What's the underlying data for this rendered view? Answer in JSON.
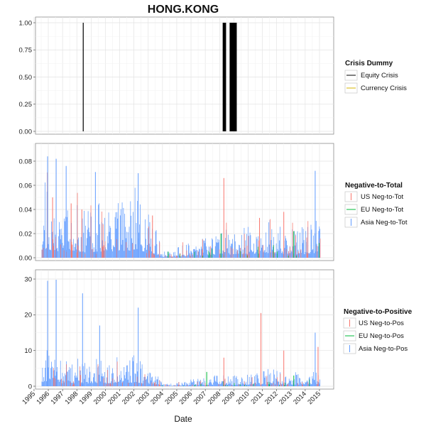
{
  "chart_data": {
    "type": "bar",
    "title": "HONG.KONG",
    "xlabel": "Date",
    "x_ticks": [
      "1995",
      "1996",
      "1997",
      "1998",
      "1999",
      "2000",
      "2001",
      "2002",
      "2003",
      "2004",
      "2005",
      "2006",
      "2007",
      "2008",
      "2009",
      "2010",
      "2011",
      "2012",
      "2013",
      "2014",
      "2015"
    ],
    "grid": true,
    "legend_placement": "right",
    "colors": {
      "us": "#F8766D",
      "eu": "#00BA38",
      "asia": "#619CFF",
      "equity": "#000000",
      "currency": "#D4B400"
    },
    "panels": [
      {
        "name": "crisis",
        "legend_title": "Crisis Dummy",
        "ylim": [
          0,
          1
        ],
        "y_ticks": [
          "0.00",
          "0.25",
          "0.50",
          "0.75",
          "1.00"
        ],
        "series": [
          {
            "name": "Equity Crisis",
            "key": "equity",
            "periods": [
              [
                "1998-06-01",
                "1998-06-15"
              ],
              [
                "2008-03-20",
                "2008-06-15"
              ],
              [
                "2008-09-15",
                "2009-03-15"
              ]
            ]
          },
          {
            "name": "Currency Crisis",
            "key": "currency",
            "periods": []
          }
        ]
      },
      {
        "name": "neg-to-tot",
        "legend_title": "Negative-to-Total",
        "ylim": [
          0,
          0.09
        ],
        "y_ticks": [
          "0.00",
          "0.02",
          "0.04",
          "0.06",
          "0.08"
        ],
        "series": [
          {
            "name": "US Neg-to-Tot",
            "key": "us"
          },
          {
            "name": "EU Neg-to-Tot",
            "key": "eu"
          },
          {
            "name": "Asia Neg-to-Tot",
            "key": "asia"
          }
        ],
        "envelope": [
          [
            1995.5,
            0.02
          ],
          [
            1995.8,
            0.05
          ],
          [
            1996.0,
            0.04
          ],
          [
            1996.5,
            0.04
          ],
          [
            1997.0,
            0.03
          ],
          [
            1997.5,
            0.04
          ],
          [
            1998.0,
            0.035
          ],
          [
            1998.5,
            0.03
          ],
          [
            1999.0,
            0.03
          ],
          [
            1999.5,
            0.035
          ],
          [
            2000.0,
            0.03
          ],
          [
            2000.5,
            0.035
          ],
          [
            2001.0,
            0.04
          ],
          [
            2001.5,
            0.035
          ],
          [
            2002.0,
            0.045
          ],
          [
            2002.5,
            0.035
          ],
          [
            2003.0,
            0.03
          ],
          [
            2003.5,
            0.02
          ],
          [
            2004.0,
            0.004
          ],
          [
            2004.5,
            0.004
          ],
          [
            2005.0,
            0.006
          ],
          [
            2005.5,
            0.008
          ],
          [
            2006.0,
            0.01
          ],
          [
            2006.5,
            0.012
          ],
          [
            2007.0,
            0.012
          ],
          [
            2007.5,
            0.015
          ],
          [
            2008.0,
            0.02
          ],
          [
            2008.5,
            0.018
          ],
          [
            2009.0,
            0.015
          ],
          [
            2009.5,
            0.02
          ],
          [
            2010.0,
            0.02
          ],
          [
            2010.5,
            0.022
          ],
          [
            2011.0,
            0.02
          ],
          [
            2011.5,
            0.025
          ],
          [
            2012.0,
            0.022
          ],
          [
            2012.5,
            0.02
          ],
          [
            2013.0,
            0.018
          ],
          [
            2013.5,
            0.02
          ],
          [
            2014.0,
            0.018
          ],
          [
            2014.5,
            0.022
          ],
          [
            2015.0,
            0.025
          ]
        ],
        "peaks": [
          {
            "series": "asia",
            "x": 1995.95,
            "y": 0.084
          },
          {
            "series": "asia",
            "x": 1996.55,
            "y": 0.082
          },
          {
            "series": "asia",
            "x": 1997.25,
            "y": 0.076
          },
          {
            "series": "asia",
            "x": 1999.3,
            "y": 0.071
          },
          {
            "series": "asia",
            "x": 2002.3,
            "y": 0.07
          },
          {
            "series": "us",
            "x": 2008.3,
            "y": 0.066
          },
          {
            "series": "asia",
            "x": 2014.7,
            "y": 0.072
          },
          {
            "series": "us",
            "x": 1996.3,
            "y": 0.05
          },
          {
            "series": "us",
            "x": 1997.6,
            "y": 0.045
          },
          {
            "series": "us",
            "x": 1998.35,
            "y": 0.04
          },
          {
            "series": "us",
            "x": 2003.3,
            "y": 0.035
          },
          {
            "series": "us",
            "x": 2010.8,
            "y": 0.033
          },
          {
            "series": "us",
            "x": 2012.5,
            "y": 0.038
          },
          {
            "series": "eu",
            "x": 2004.4,
            "y": 0.005
          },
          {
            "series": "eu",
            "x": 2008.1,
            "y": 0.02
          },
          {
            "series": "eu",
            "x": 2013.2,
            "y": 0.022
          }
        ]
      },
      {
        "name": "neg-to-pos",
        "legend_title": "Negative-to-Positive",
        "ylim": [
          0,
          31
        ],
        "y_ticks": [
          "0",
          "10",
          "20",
          "30"
        ],
        "series": [
          {
            "name": "US Neg-to-Pos",
            "key": "us"
          },
          {
            "name": "EU Neg-to-Pos",
            "key": "eu"
          },
          {
            "name": "Asia Neg-to-Pos",
            "key": "asia"
          }
        ],
        "envelope": [
          [
            1995.5,
            3
          ],
          [
            1995.8,
            9
          ],
          [
            1996.0,
            7
          ],
          [
            1996.5,
            8
          ],
          [
            1997.0,
            5
          ],
          [
            1997.5,
            6
          ],
          [
            1998.0,
            6
          ],
          [
            1998.5,
            5
          ],
          [
            1999.0,
            5
          ],
          [
            1999.5,
            6
          ],
          [
            2000.0,
            5
          ],
          [
            2000.5,
            6
          ],
          [
            2001.0,
            6
          ],
          [
            2001.5,
            5
          ],
          [
            2002.0,
            7
          ],
          [
            2002.5,
            5
          ],
          [
            2003.0,
            4
          ],
          [
            2003.5,
            3
          ],
          [
            2004.0,
            0.5
          ],
          [
            2004.5,
            0.5
          ],
          [
            2005.0,
            0.8
          ],
          [
            2005.5,
            1.2
          ],
          [
            2006.0,
            1.5
          ],
          [
            2006.5,
            1.8
          ],
          [
            2007.0,
            1.8
          ],
          [
            2007.5,
            2.5
          ],
          [
            2008.0,
            3
          ],
          [
            2008.5,
            2.8
          ],
          [
            2009.0,
            2.2
          ],
          [
            2009.5,
            3
          ],
          [
            2010.0,
            3
          ],
          [
            2010.5,
            3.5
          ],
          [
            2011.0,
            3
          ],
          [
            2011.5,
            4
          ],
          [
            2012.0,
            3.5
          ],
          [
            2012.5,
            3
          ],
          [
            2013.0,
            2.8
          ],
          [
            2013.5,
            3
          ],
          [
            2014.0,
            2.8
          ],
          [
            2014.5,
            3.5
          ],
          [
            2015.0,
            4
          ]
        ],
        "peaks": [
          {
            "series": "asia",
            "x": 1995.95,
            "y": 29.5
          },
          {
            "series": "asia",
            "x": 1996.55,
            "y": 29.8
          },
          {
            "series": "asia",
            "x": 1998.4,
            "y": 26
          },
          {
            "series": "asia",
            "x": 2002.3,
            "y": 22
          },
          {
            "series": "asia",
            "x": 1999.6,
            "y": 17
          },
          {
            "series": "us",
            "x": 2010.9,
            "y": 20.5
          },
          {
            "series": "asia",
            "x": 2014.7,
            "y": 15
          },
          {
            "series": "us",
            "x": 2008.3,
            "y": 8
          },
          {
            "series": "us",
            "x": 2012.5,
            "y": 10
          },
          {
            "series": "us",
            "x": 2014.9,
            "y": 11
          },
          {
            "series": "eu",
            "x": 2007.1,
            "y": 4
          },
          {
            "series": "eu",
            "x": 2013.2,
            "y": 3
          }
        ]
      }
    ]
  }
}
